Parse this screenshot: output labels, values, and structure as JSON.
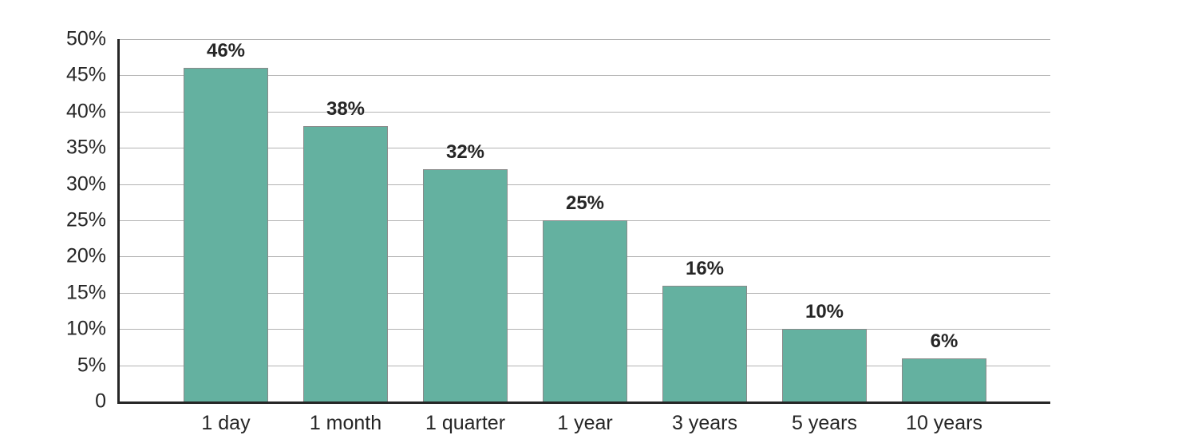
{
  "chart_data": {
    "type": "bar",
    "title": "",
    "xlabel": "",
    "ylabel": "",
    "categories": [
      "1 day",
      "1 month",
      "1 quarter",
      "1 year",
      "3 years",
      "5 years",
      "10 years"
    ],
    "values": [
      46,
      38,
      32,
      25,
      16,
      10,
      6
    ],
    "value_labels": [
      "46%",
      "38%",
      "32%",
      "25%",
      "16%",
      "10%",
      "6%"
    ],
    "ylim": [
      0,
      50
    ],
    "ytick_step": 5,
    "ytick_labels": [
      "0",
      "5%",
      "10%",
      "15%",
      "20%",
      "25%",
      "30%",
      "35%",
      "40%",
      "45%",
      "50%"
    ],
    "grid": "horizontal-only",
    "legend": "none",
    "colors": {
      "bar_fill": "#64b1a0",
      "bar_border": "#8a8a8a",
      "gridline": "#b3b3b3",
      "axis": "#262626",
      "text": "#262626"
    }
  }
}
